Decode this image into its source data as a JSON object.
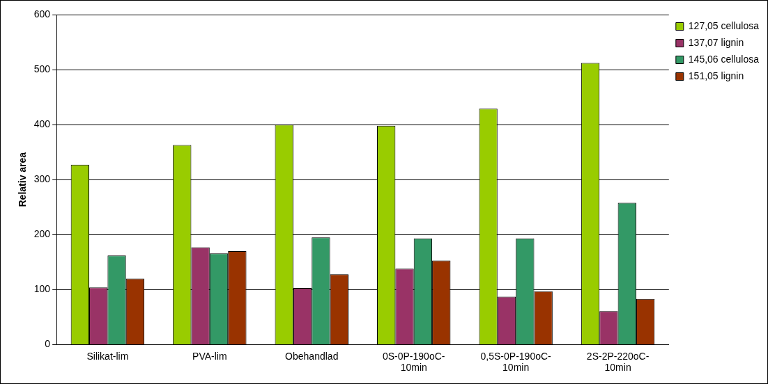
{
  "chart_data": {
    "type": "bar",
    "ylabel": "Relativ area",
    "categories": [
      "Silikat-lim",
      "PVA-lim",
      "Obehandlad",
      "0S-0P-190oC-10min",
      "0,5S-0P-190oC-10min",
      "2S-2P-220oC-10min"
    ],
    "series": [
      {
        "name": "127,05 cellulosa",
        "color": "#99cc00",
        "values": [
          327,
          363,
          400,
          398,
          429,
          512
        ]
      },
      {
        "name": "137,07 lignin",
        "color": "#993366",
        "values": [
          104,
          177,
          103,
          138,
          87,
          61
        ]
      },
      {
        "name": "145,06 cellulosa",
        "color": "#339966",
        "values": [
          162,
          166,
          195,
          193,
          193,
          258
        ]
      },
      {
        "name": "151,05 lignin",
        "color": "#993300",
        "values": [
          120,
          170,
          128,
          153,
          97,
          83
        ]
      }
    ],
    "ylim": [
      0,
      600
    ],
    "yticks": [
      0,
      100,
      200,
      300,
      400,
      500,
      600
    ],
    "grid": "y",
    "legend": "top right"
  }
}
